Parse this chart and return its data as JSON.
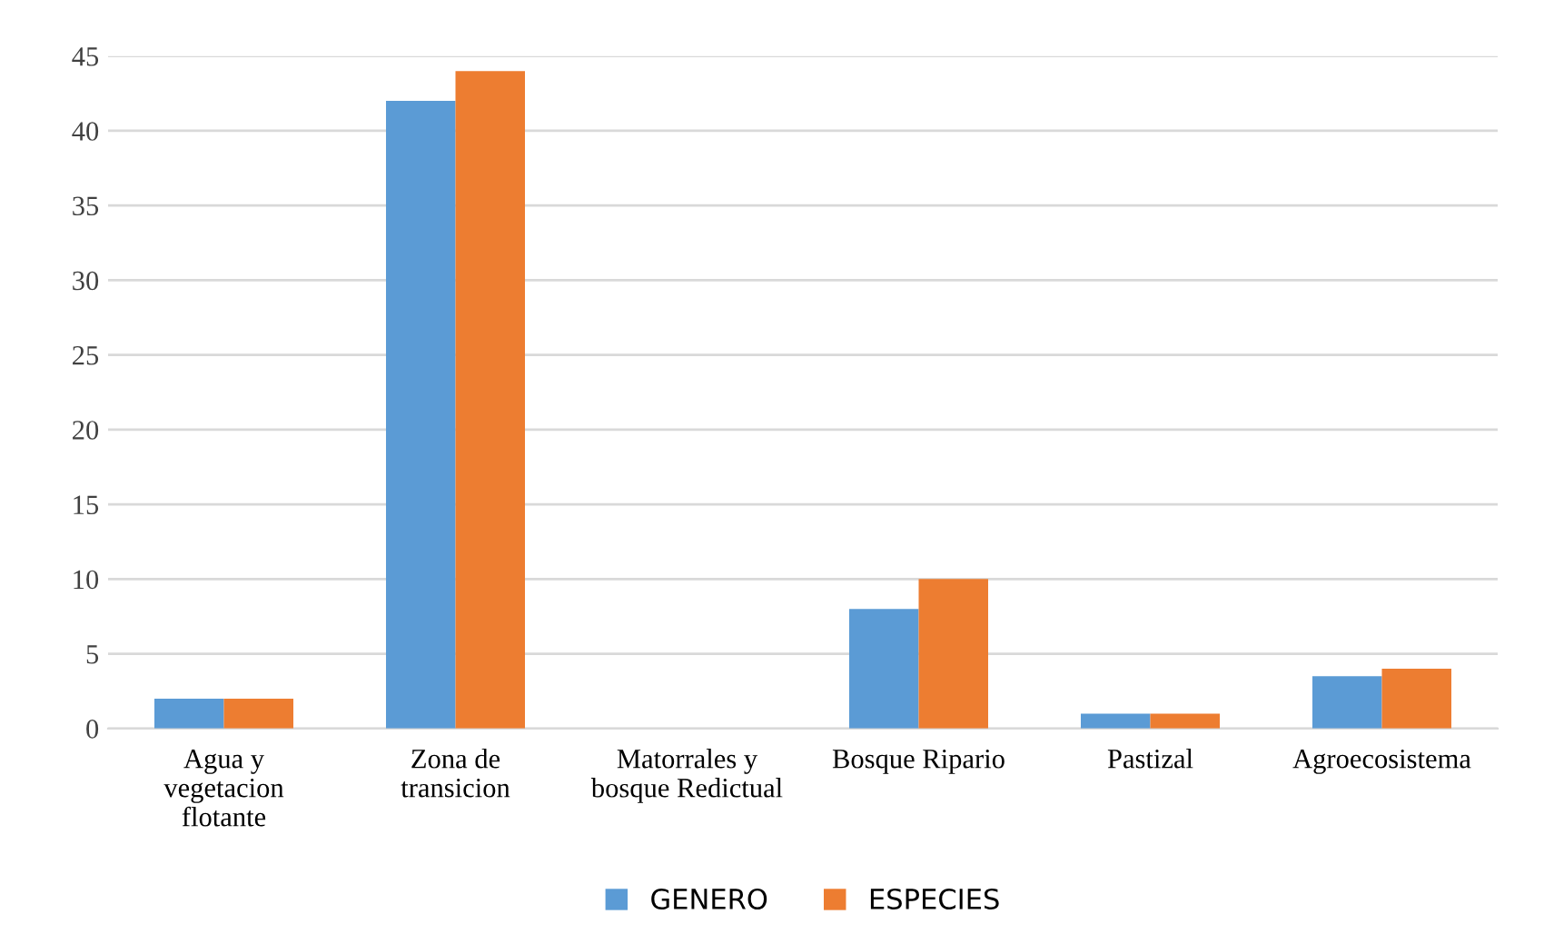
{
  "chart_data": {
    "type": "bar",
    "categories": [
      "Agua y\nvegetacion\nflotante",
      "Zona de\ntransicion",
      "Matorrales y\nbosque Redictual",
      "Bosque Ripario",
      "Pastizal",
      "Agroecosistema"
    ],
    "series": [
      {
        "name": "GENERO",
        "color": "#5b9bd5",
        "values": [
          2,
          42,
          0,
          8,
          1,
          3.5
        ]
      },
      {
        "name": "ESPECIES",
        "color": "#ed7d31",
        "values": [
          2,
          44,
          0,
          10,
          1,
          4
        ]
      }
    ],
    "ylim": [
      0,
      45
    ],
    "yticks": [
      0,
      5,
      10,
      15,
      20,
      25,
      30,
      35,
      40,
      45
    ],
    "grid": "y",
    "legend": "bottom"
  }
}
